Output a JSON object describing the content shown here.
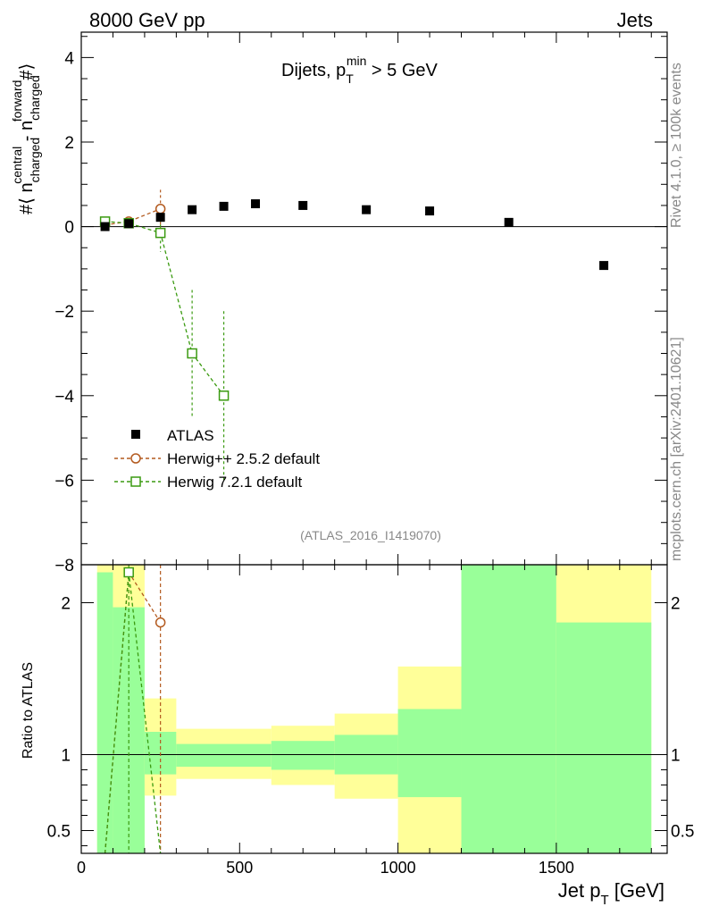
{
  "header": {
    "left": "8000 GeV pp",
    "right": "Jets"
  },
  "side_labels": {
    "rivet": "Rivet 4.1.0, ≥ 100k events",
    "mcplots": "mcplots.cern.ch [arXiv:2401.10621]"
  },
  "colors": {
    "atlas": "#000000",
    "herwigpp": "#b35a1f",
    "herwig7": "#3a9a10",
    "band_green": "#99ff99",
    "band_yellow": "#ffff99"
  },
  "chart_data": [
    {
      "type": "scatter",
      "title": "Dijets, p_T^min > 5 GeV",
      "title_parts": {
        "main": "Dijets, p",
        "sub": "T",
        "sup": "min",
        "tail": " > 5 GeV"
      },
      "ylabel_parts": {
        "a": "#⟨ n",
        "sup1": "central",
        "sub1": "charged",
        "mid": " - n",
        "sup2": "forward",
        "sub2": "charged",
        "end": "#⟩"
      },
      "xlim": [
        0,
        1850
      ],
      "ylim": [
        -8,
        4.6
      ],
      "yticks": [
        4,
        2,
        0,
        -2,
        -4,
        -6,
        -8
      ],
      "ytick_labels": [
        "4",
        "2",
        "0",
        "−2",
        "−4",
        "−6",
        "−8"
      ],
      "watermark": "(ATLAS_2016_I1419070)",
      "series": [
        {
          "name": "ATLAS",
          "marker": "square-filled",
          "x": [
            75,
            150,
            250,
            350,
            450,
            550,
            700,
            900,
            1100,
            1350,
            1650
          ],
          "y": [
            0.0,
            0.07,
            0.22,
            0.4,
            0.48,
            0.54,
            0.5,
            0.4,
            0.37,
            0.1,
            -0.92
          ]
        },
        {
          "name": "Herwig++ 2.5.2 default",
          "marker": "circle-open",
          "line": "dashed",
          "x": [
            75,
            150,
            250
          ],
          "y": [
            0.04,
            0.12,
            0.42
          ],
          "yerr": [
            0.06,
            0.1,
            0.45
          ]
        },
        {
          "name": "Herwig 7.2.1 default",
          "marker": "square-open",
          "line": "dashed",
          "x": [
            75,
            150,
            250,
            350,
            450
          ],
          "y": [
            0.12,
            0.08,
            -0.15,
            -3.0,
            -4.0
          ],
          "yerr": [
            0.05,
            0.1,
            0.45,
            1.5,
            2.0
          ]
        }
      ],
      "legend": [
        {
          "label": "ATLAS"
        },
        {
          "label": "Herwig++ 2.5.2 default"
        },
        {
          "label": "Herwig 7.2.1 default"
        }
      ]
    },
    {
      "type": "ratio",
      "ylabel": "Ratio to ATLAS",
      "xlabel_parts": {
        "main": "Jet p",
        "sub": "T",
        "tail": " [GeV]"
      },
      "xlim": [
        0,
        1850
      ],
      "ylim": [
        0.35,
        2.25
      ],
      "xticks": [
        0,
        500,
        1000,
        1500
      ],
      "xtick_labels": [
        "0",
        "500",
        "1000",
        "1500"
      ],
      "yticks": [
        2,
        1,
        0.5
      ],
      "ytick_labels": [
        "2",
        "1",
        "0.5"
      ],
      "bins": [
        {
          "x0": 50,
          "x1": 100,
          "g_lo": 0.35,
          "g_hi": 2.2,
          "y_lo": 0.35,
          "y_hi": 2.25
        },
        {
          "x0": 100,
          "x1": 200,
          "g_lo": 0.35,
          "g_hi": 1.97,
          "y_lo": 0.35,
          "y_hi": 2.25
        },
        {
          "x0": 200,
          "x1": 300,
          "g_lo": 0.87,
          "g_hi": 1.15,
          "y_lo": 0.73,
          "y_hi": 1.37
        },
        {
          "x0": 300,
          "x1": 600,
          "g_lo": 0.92,
          "g_hi": 1.07,
          "y_lo": 0.84,
          "y_hi": 1.17
        },
        {
          "x0": 600,
          "x1": 800,
          "g_lo": 0.9,
          "g_hi": 1.09,
          "y_lo": 0.8,
          "y_hi": 1.19
        },
        {
          "x0": 800,
          "x1": 1000,
          "g_lo": 0.87,
          "g_hi": 1.13,
          "y_lo": 0.71,
          "y_hi": 1.27
        },
        {
          "x0": 1000,
          "x1": 1200,
          "g_lo": 0.72,
          "g_hi": 1.3,
          "y_lo": 0.35,
          "y_hi": 1.58
        },
        {
          "x0": 1200,
          "x1": 1500,
          "g_lo": 0.35,
          "g_hi": 2.25,
          "y_lo": 0.35,
          "y_hi": 2.25
        },
        {
          "x0": 1500,
          "x1": 1800,
          "g_lo": 0.35,
          "g_hi": 1.87,
          "y_lo": 0.35,
          "y_hi": 2.25
        }
      ],
      "series": [
        {
          "name": "Herwig++ 2.5.2 default",
          "x": [
            75,
            150,
            250
          ],
          "y": [
            0.3,
            2.2,
            1.87
          ],
          "marker_visible": [
            false,
            false,
            true
          ]
        },
        {
          "name": "Herwig 7.2.1 default",
          "x": [
            75,
            150,
            250
          ],
          "y": [
            0.1,
            2.2,
            -0.3
          ],
          "marker_visible": [
            false,
            true,
            false
          ]
        }
      ]
    }
  ]
}
